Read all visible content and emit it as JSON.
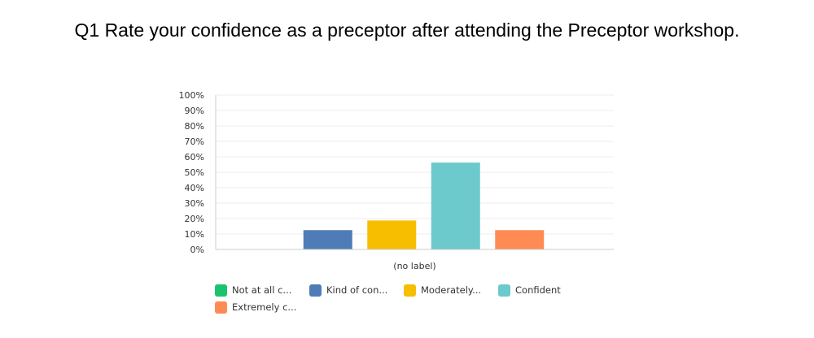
{
  "title": "Q1 Rate your confidence as a preceptor after attending the Preceptor workshop.",
  "chart_data": {
    "type": "bar",
    "categories": [
      "(no label)"
    ],
    "xlabel": "(no label)",
    "ylabel": "",
    "ylim": [
      0,
      100
    ],
    "y_ticks": [
      "0%",
      "10%",
      "20%",
      "30%",
      "40%",
      "50%",
      "60%",
      "70%",
      "80%",
      "90%",
      "100%"
    ],
    "grid": true,
    "legend_position": "bottom",
    "series": [
      {
        "name": "Not at all c...",
        "values": [
          0
        ],
        "color": "#1cc36e"
      },
      {
        "name": "Kind of con...",
        "values": [
          12.5
        ],
        "color": "#4f7cb7"
      },
      {
        "name": "Moderately...",
        "values": [
          18.75
        ],
        "color": "#f7be00"
      },
      {
        "name": "Confident",
        "values": [
          56.25
        ],
        "color": "#6cc9cc"
      },
      {
        "name": "Extremely c...",
        "values": [
          12.5
        ],
        "color": "#ff8b54"
      }
    ]
  }
}
